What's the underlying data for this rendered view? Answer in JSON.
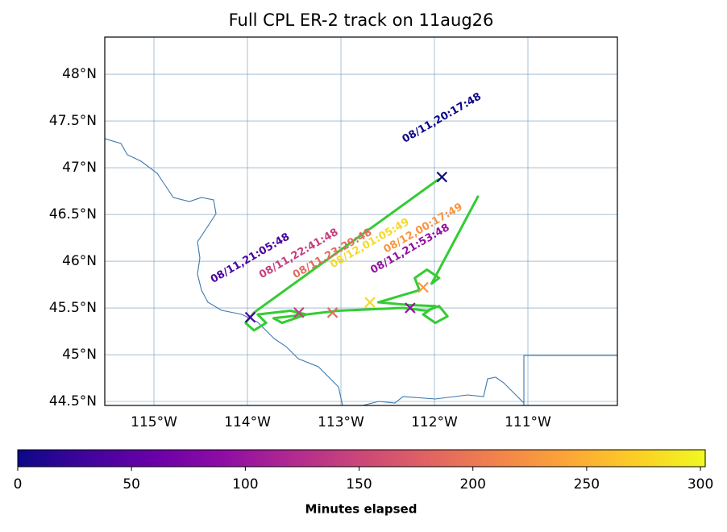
{
  "chart_data": {
    "type": "map",
    "title": "Full CPL ER-2 track on 11aug26",
    "xlim": [
      -115.526,
      -110.043
    ],
    "ylim": [
      44.457,
      48.397
    ],
    "xticks": [
      {
        "value": -115,
        "label": "115°W"
      },
      {
        "value": -114,
        "label": "114°W"
      },
      {
        "value": -113,
        "label": "113°W"
      },
      {
        "value": -112,
        "label": "112°W"
      },
      {
        "value": -111,
        "label": "111°W"
      }
    ],
    "yticks": [
      {
        "value": 44.5,
        "label": "44.5°N"
      },
      {
        "value": 45,
        "label": "45°N"
      },
      {
        "value": 45.5,
        "label": "45.5°N"
      },
      {
        "value": 46,
        "label": "46°N"
      },
      {
        "value": 46.5,
        "label": "46.5°N"
      },
      {
        "value": 47,
        "label": "47°N"
      },
      {
        "value": 47.5,
        "label": "47.5°N"
      },
      {
        "value": 48,
        "label": "48°N"
      }
    ],
    "grid": true,
    "track": {
      "color": "#33cc33",
      "lon": [
        -111.95,
        -113.82,
        -113.93,
        -114.02,
        -113.93,
        -113.8,
        -113.89,
        -113.54,
        -113.37,
        -113.63,
        -113.72,
        -113.03,
        -112.34,
        -112.08,
        -111.95,
        -111.86,
        -111.99,
        -112.12,
        -111.99,
        -112.25,
        -112.6,
        -112.16,
        -112.21,
        -112.08,
        -111.95,
        -112.03,
        -111.53
      ],
      "lat": [
        46.88,
        45.53,
        45.45,
        45.34,
        45.26,
        45.34,
        45.43,
        45.47,
        45.43,
        45.34,
        45.39,
        45.47,
        45.5,
        45.47,
        45.52,
        45.41,
        45.34,
        45.43,
        45.52,
        45.53,
        45.56,
        45.69,
        45.82,
        45.91,
        45.82,
        45.76,
        46.7
      ]
    },
    "markers": [
      {
        "label": "08/11,20:17:48",
        "lon": -111.92,
        "lat": 46.9,
        "minutes": 0,
        "color": "#0d0887"
      },
      {
        "label": "08/11,21:05:48",
        "lon": -113.97,
        "lat": 45.4,
        "minutes": 48,
        "color": "#4903a0"
      },
      {
        "label": "08/11,21:53:48",
        "lon": -112.26,
        "lat": 45.5,
        "minutes": 96,
        "color": "#950fa2"
      },
      {
        "label": "08/11,22:41:48",
        "lon": -113.45,
        "lat": 45.45,
        "minutes": 144,
        "color": "#c5407e"
      },
      {
        "label": "08/11,23:29:48",
        "lon": -113.09,
        "lat": 45.45,
        "minutes": 192,
        "color": "#e56b5d"
      },
      {
        "label": "08/12,00:17:49",
        "lon": -112.12,
        "lat": 45.72,
        "minutes": 240,
        "color": "#f89540"
      },
      {
        "label": "08/12,01:05:49",
        "lon": -112.69,
        "lat": 45.56,
        "minutes": 288,
        "color": "#f5d92a"
      }
    ],
    "colorbar": {
      "label": "Minutes elapsed",
      "colormap": "plasma",
      "clim": [
        0,
        302.1
      ],
      "ticks": [
        0,
        50,
        100,
        150,
        200,
        250,
        300
      ]
    }
  }
}
